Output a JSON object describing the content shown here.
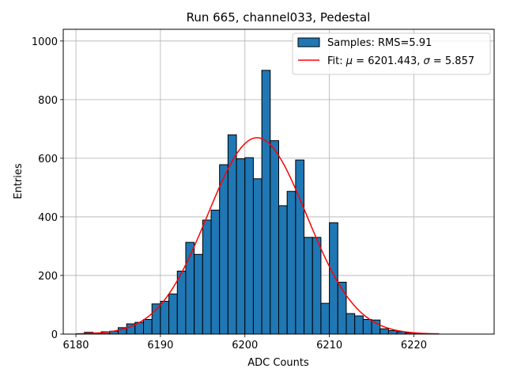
{
  "chart_data": {
    "type": "bar",
    "title": "Run 665, channel033, Pedestal",
    "xlabel": "ADC Counts",
    "ylabel": "Entries",
    "xlim": [
      6178.5,
      6229.5
    ],
    "ylim": [
      0,
      1040
    ],
    "xticks": [
      6180,
      6190,
      6200,
      6210,
      6220
    ],
    "yticks": [
      0,
      200,
      400,
      600,
      800,
      1000
    ],
    "grid": true,
    "legend_position": "top-right",
    "bin_width": 1,
    "bin_edges_start": 6181,
    "hist_values": [
      6,
      4,
      8,
      10,
      22,
      35,
      40,
      50,
      103,
      112,
      137,
      215,
      313,
      272,
      389,
      423,
      578,
      680,
      598,
      602,
      530,
      900,
      660,
      438,
      487,
      594,
      330,
      330,
      105,
      380,
      177,
      70,
      62,
      50,
      48,
      18,
      12,
      8,
      4,
      2
    ],
    "series": [
      {
        "name": "Samples: RMS=5.91",
        "kind": "histogram",
        "color": "#1f77b4"
      },
      {
        "name": "Fit: μ = 6201.443, σ = 5.857",
        "kind": "gaussian-fit",
        "color": "#ff0000",
        "mu": 6201.443,
        "sigma": 5.857,
        "amplitude": 670,
        "x_range": [
          6180,
          6223
        ]
      }
    ],
    "legend": {
      "hist_label": "Samples: RMS=5.91",
      "fit_label_prefix": "Fit: ",
      "fit_mu_symbol": "μ",
      "fit_mu_value": " = 6201.443, ",
      "fit_sigma_symbol": "σ",
      "fit_sigma_value": " = 5.857"
    }
  }
}
